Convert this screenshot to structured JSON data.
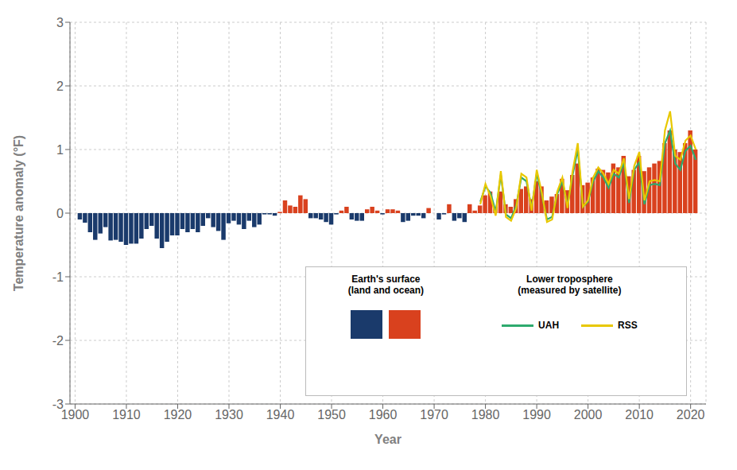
{
  "chart_data": {
    "type": "bar",
    "title": "",
    "xlabel": "Year",
    "ylabel": "Temperature anomaly (°F)",
    "xlim": [
      1899,
      2023
    ],
    "ylim": [
      -3,
      3
    ],
    "xticks": [
      1900,
      1910,
      1920,
      1930,
      1940,
      1950,
      1960,
      1970,
      1980,
      1990,
      2000,
      2010,
      2020
    ],
    "yticks": [
      -3,
      -2,
      -1,
      0,
      1,
      2,
      3
    ],
    "grid": true,
    "annotations": [
      "Lower troposphere\n(measured by satellite)"
    ],
    "x": [
      1901,
      1902,
      1903,
      1904,
      1905,
      1906,
      1907,
      1908,
      1909,
      1910,
      1911,
      1912,
      1913,
      1914,
      1915,
      1916,
      1917,
      1918,
      1919,
      1920,
      1921,
      1922,
      1923,
      1924,
      1925,
      1926,
      1927,
      1928,
      1929,
      1930,
      1931,
      1932,
      1933,
      1934,
      1935,
      1936,
      1937,
      1938,
      1939,
      1940,
      1941,
      1942,
      1943,
      1944,
      1945,
      1946,
      1947,
      1948,
      1949,
      1950,
      1951,
      1952,
      1953,
      1954,
      1955,
      1956,
      1957,
      1958,
      1959,
      1960,
      1961,
      1962,
      1963,
      1964,
      1965,
      1966,
      1967,
      1968,
      1969,
      1970,
      1971,
      1972,
      1973,
      1974,
      1975,
      1976,
      1977,
      1978,
      1979,
      1980,
      1981,
      1982,
      1983,
      1984,
      1985,
      1986,
      1987,
      1988,
      1989,
      1990,
      1991,
      1992,
      1993,
      1994,
      1995,
      1996,
      1997,
      1998,
      1999,
      2000,
      2001,
      2002,
      2003,
      2004,
      2005,
      2006,
      2007,
      2008,
      2009,
      2010,
      2011,
      2012,
      2013,
      2014,
      2015,
      2016,
      2017,
      2018,
      2019,
      2020,
      2021
    ],
    "series": [
      {
        "name": "Earth's surface\n(land and ocean)",
        "type": "bar",
        "values": [
          -0.1,
          -0.15,
          -0.3,
          -0.42,
          -0.32,
          -0.22,
          -0.43,
          -0.42,
          -0.45,
          -0.5,
          -0.48,
          -0.48,
          -0.4,
          -0.25,
          -0.2,
          -0.4,
          -0.55,
          -0.45,
          -0.35,
          -0.35,
          -0.25,
          -0.3,
          -0.25,
          -0.3,
          -0.2,
          -0.08,
          -0.22,
          -0.28,
          -0.42,
          -0.16,
          -0.12,
          -0.18,
          -0.25,
          -0.12,
          -0.22,
          -0.18,
          -0.02,
          -0.02,
          -0.04,
          0.02,
          0.2,
          0.12,
          0.1,
          0.28,
          0.22,
          -0.08,
          -0.08,
          -0.1,
          -0.14,
          -0.18,
          -0.02,
          0.04,
          0.1,
          -0.1,
          -0.12,
          -0.12,
          0.06,
          0.1,
          0.04,
          -0.02,
          0.06,
          0.06,
          0.04,
          -0.14,
          -0.12,
          -0.04,
          -0.04,
          -0.08,
          0.08,
          0.0,
          -0.1,
          -0.02,
          0.14,
          -0.12,
          -0.08,
          -0.14,
          0.14,
          0.04,
          0.12,
          0.28,
          0.34,
          0.1,
          0.34,
          0.14,
          0.1,
          0.22,
          0.38,
          0.42,
          0.22,
          0.5,
          0.42,
          0.2,
          0.26,
          0.3,
          0.54,
          0.36,
          0.6,
          0.78,
          0.44,
          0.48,
          0.56,
          0.7,
          0.68,
          0.64,
          0.78,
          0.72,
          0.9,
          0.58,
          0.68,
          0.9,
          0.66,
          0.72,
          0.78,
          0.82,
          1.1,
          1.3,
          1.0,
          0.96,
          1.1,
          1.3,
          1.0
        ],
        "colors": [
          "#1a3a6b",
          "#1a3a6b",
          "#1a3a6b",
          "#1a3a6b",
          "#1a3a6b",
          "#1a3a6b",
          "#1a3a6b",
          "#1a3a6b",
          "#1a3a6b",
          "#1a3a6b",
          "#1a3a6b",
          "#1a3a6b",
          "#1a3a6b",
          "#1a3a6b",
          "#1a3a6b",
          "#1a3a6b",
          "#1a3a6b",
          "#1a3a6b",
          "#1a3a6b",
          "#1a3a6b",
          "#1a3a6b",
          "#1a3a6b",
          "#1a3a6b",
          "#1a3a6b",
          "#1a3a6b",
          "#1a3a6b",
          "#1a3a6b",
          "#1a3a6b",
          "#1a3a6b",
          "#1a3a6b",
          "#1a3a6b",
          "#1a3a6b",
          "#1a3a6b",
          "#1a3a6b",
          "#1a3a6b",
          "#1a3a6b",
          "#1a3a6b",
          "#1a3a6b",
          "#1a3a6b",
          "#d9411e",
          "#d9411e",
          "#d9411e",
          "#d9411e",
          "#d9411e",
          "#d9411e",
          "#1a3a6b",
          "#1a3a6b",
          "#1a3a6b",
          "#1a3a6b",
          "#1a3a6b",
          "#1a3a6b",
          "#d9411e",
          "#d9411e",
          "#1a3a6b",
          "#1a3a6b",
          "#1a3a6b",
          "#d9411e",
          "#d9411e",
          "#d9411e",
          "#1a3a6b",
          "#d9411e",
          "#d9411e",
          "#d9411e",
          "#1a3a6b",
          "#1a3a6b",
          "#1a3a6b",
          "#1a3a6b",
          "#1a3a6b",
          "#d9411e",
          "#d9411e",
          "#1a3a6b",
          "#1a3a6b",
          "#d9411e",
          "#1a3a6b",
          "#1a3a6b",
          "#1a3a6b",
          "#d9411e",
          "#d9411e",
          "#d9411e",
          "#d9411e",
          "#d9411e",
          "#d9411e",
          "#d9411e",
          "#d9411e",
          "#d9411e",
          "#d9411e",
          "#d9411e",
          "#d9411e",
          "#d9411e",
          "#d9411e",
          "#d9411e",
          "#d9411e",
          "#d9411e",
          "#d9411e",
          "#d9411e",
          "#d9411e",
          "#d9411e",
          "#d9411e",
          "#d9411e",
          "#d9411e",
          "#d9411e",
          "#d9411e",
          "#d9411e",
          "#d9411e",
          "#d9411e",
          "#d9411e",
          "#d9411e",
          "#d9411e",
          "#d9411e",
          "#d9411e",
          "#d9411e",
          "#d9411e",
          "#d9411e",
          "#d9411e",
          "#d9411e",
          "#d9411e",
          "#d9411e",
          "#d9411e",
          "#d9411e",
          "#d9411e",
          "#d9411e"
        ]
      },
      {
        "name": "UAH",
        "type": "line",
        "color": "#2eaa6e",
        "x": [
          1979,
          1980,
          1981,
          1982,
          1983,
          1984,
          1985,
          1986,
          1987,
          1988,
          1989,
          1990,
          1991,
          1992,
          1993,
          1994,
          1995,
          1996,
          1997,
          1998,
          1999,
          2000,
          2001,
          2002,
          2003,
          2004,
          2005,
          2006,
          2007,
          2008,
          2009,
          2010,
          2011,
          2012,
          2013,
          2014,
          2015,
          2016,
          2017,
          2018,
          2019,
          2020,
          2021
        ],
        "values": [
          0.18,
          0.42,
          0.32,
          0.02,
          0.6,
          -0.02,
          -0.08,
          0.12,
          0.56,
          0.5,
          0.08,
          0.62,
          0.28,
          -0.1,
          -0.06,
          0.3,
          0.5,
          0.12,
          0.6,
          1.0,
          0.1,
          0.18,
          0.5,
          0.66,
          0.56,
          0.4,
          0.62,
          0.56,
          0.8,
          0.16,
          0.68,
          0.8,
          0.14,
          0.44,
          0.46,
          0.44,
          1.1,
          1.3,
          0.78,
          0.68,
          0.98,
          1.06,
          0.84
        ]
      },
      {
        "name": "RSS",
        "type": "line",
        "color": "#e8c800",
        "x": [
          1979,
          1980,
          1981,
          1982,
          1983,
          1984,
          1985,
          1986,
          1987,
          1988,
          1989,
          1990,
          1991,
          1992,
          1993,
          1994,
          1995,
          1996,
          1997,
          1998,
          1999,
          2000,
          2001,
          2002,
          2003,
          2004,
          2005,
          2006,
          2007,
          2008,
          2009,
          2010,
          2011,
          2012,
          2013,
          2014,
          2015,
          2016,
          2017,
          2018,
          2019,
          2020,
          2021
        ],
        "values": [
          0.14,
          0.46,
          0.26,
          -0.04,
          0.66,
          -0.06,
          -0.12,
          0.08,
          0.62,
          0.56,
          0.04,
          0.68,
          0.32,
          -0.14,
          -0.1,
          0.34,
          0.56,
          0.08,
          0.66,
          1.1,
          0.1,
          0.2,
          0.56,
          0.72,
          0.62,
          0.46,
          0.68,
          0.62,
          0.86,
          0.22,
          0.74,
          0.96,
          0.2,
          0.5,
          0.52,
          0.5,
          1.3,
          1.6,
          0.9,
          0.84,
          1.14,
          1.22,
          1.0
        ]
      }
    ]
  }
}
